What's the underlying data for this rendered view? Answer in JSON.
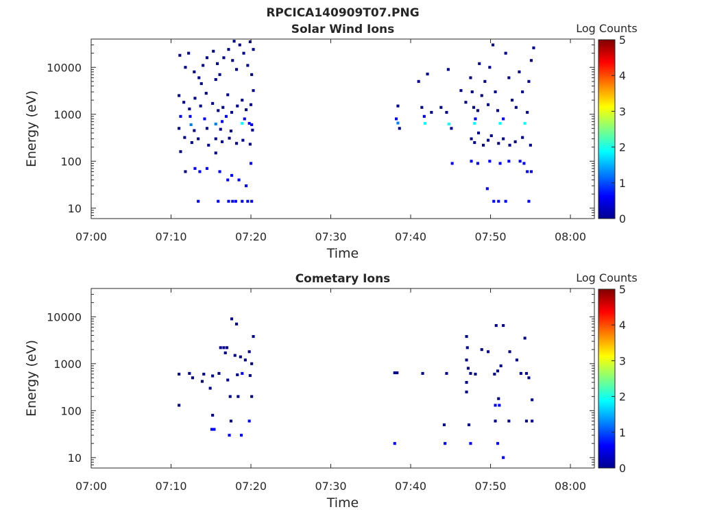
{
  "figure": {
    "title": "RPCICA140909T07.PNG"
  },
  "colors": {
    "cell": "#00008f",
    "cell_mid": "#0f40ff",
    "cell_bright": "#2fb6ff",
    "axis": "#262626",
    "colormap": [
      "#00008f",
      "#0000ff",
      "#0080ff",
      "#00ffff",
      "#80ff80",
      "#ffff00",
      "#ff8000",
      "#ff0000",
      "#800000"
    ]
  },
  "chart_data": [
    {
      "type": "heatmap",
      "title": "Solar Wind Ions",
      "xlabel": "Time",
      "ylabel": "Energy (eV)",
      "x_unit": "minutes after 07:00",
      "xlim": [
        0,
        63
      ],
      "x_ticks": [
        0,
        10,
        20,
        30,
        40,
        50,
        60
      ],
      "x_tick_labels": [
        "07:00",
        "07:10",
        "07:20",
        "07:30",
        "07:40",
        "07:50",
        "08:00"
      ],
      "yscale": "log",
      "ylim": [
        6,
        40000
      ],
      "y_ticks": [
        10,
        100,
        1000,
        10000
      ],
      "y_tick_labels": [
        "10",
        "100",
        "1000",
        "10000"
      ],
      "colorbar": {
        "label": "Log Counts",
        "range": [
          0,
          5
        ],
        "ticks": [
          0,
          1,
          2,
          3,
          4,
          5
        ],
        "tick_labels": [
          "0",
          "1",
          "2",
          "3",
          "4",
          "5"
        ]
      },
      "grid": false,
      "cells": [
        [
          11.1,
          18000,
          0.3
        ],
        [
          12.2,
          20000,
          0.3
        ],
        [
          11.8,
          10000,
          0.3
        ],
        [
          12.9,
          8000,
          0.3
        ],
        [
          13.5,
          6000,
          0.3
        ],
        [
          14.0,
          11000,
          0.3
        ],
        [
          14.5,
          16000,
          0.3
        ],
        [
          15.3,
          22000,
          0.3
        ],
        [
          15.8,
          12000,
          0.3
        ],
        [
          16.1,
          7000,
          0.3
        ],
        [
          16.6,
          16000,
          0.3
        ],
        [
          17.2,
          24000,
          0.3
        ],
        [
          17.7,
          14000,
          0.3
        ],
        [
          18.2,
          9000,
          0.3
        ],
        [
          18.6,
          30000,
          0.3
        ],
        [
          19.1,
          20000,
          0.3
        ],
        [
          19.6,
          11000,
          0.3
        ],
        [
          20.1,
          7000,
          0.3
        ],
        [
          20.3,
          24000,
          0.3
        ],
        [
          19.9,
          35000,
          0.3
        ],
        [
          17.9,
          36000,
          0.3
        ],
        [
          15.6,
          5500,
          0.3
        ],
        [
          13.8,
          4500,
          0.3
        ],
        [
          11.0,
          2500,
          0.3
        ],
        [
          11.6,
          1800,
          0.3
        ],
        [
          12.3,
          1300,
          0.3
        ],
        [
          13.0,
          2200,
          0.3
        ],
        [
          13.7,
          1500,
          0.3
        ],
        [
          14.4,
          2800,
          0.3
        ],
        [
          15.2,
          1700,
          0.3
        ],
        [
          15.9,
          1200,
          0.3
        ],
        [
          16.5,
          1400,
          0.3
        ],
        [
          17.1,
          2600,
          0.3
        ],
        [
          17.6,
          1100,
          0.3
        ],
        [
          18.3,
          1500,
          0.3
        ],
        [
          18.9,
          2000,
          0.3
        ],
        [
          19.4,
          1250,
          0.3
        ],
        [
          20.0,
          1600,
          0.3
        ],
        [
          20.3,
          3200,
          0.3
        ],
        [
          11.2,
          900,
          0.4
        ],
        [
          12.4,
          900,
          0.4
        ],
        [
          12.5,
          600,
          1.4
        ],
        [
          14.2,
          800,
          0.4
        ],
        [
          15.6,
          620,
          1.5
        ],
        [
          16.4,
          700,
          0.4
        ],
        [
          16.9,
          900,
          0.4
        ],
        [
          18.9,
          640,
          2.0
        ],
        [
          19.2,
          800,
          0.6
        ],
        [
          19.8,
          640,
          0.6
        ],
        [
          20.1,
          600,
          0.4
        ],
        [
          11.0,
          500,
          0.3
        ],
        [
          12.9,
          450,
          0.3
        ],
        [
          14.5,
          500,
          0.3
        ],
        [
          16.2,
          480,
          0.3
        ],
        [
          17.5,
          440,
          0.3
        ],
        [
          20.2,
          460,
          0.3
        ],
        [
          11.7,
          320,
          0.3
        ],
        [
          12.6,
          250,
          0.3
        ],
        [
          13.4,
          300,
          0.3
        ],
        [
          14.7,
          220,
          0.3
        ],
        [
          15.6,
          300,
          0.3
        ],
        [
          16.4,
          260,
          0.3
        ],
        [
          17.3,
          310,
          0.3
        ],
        [
          18.2,
          240,
          0.3
        ],
        [
          19.0,
          280,
          0.3
        ],
        [
          19.9,
          230,
          0.3
        ],
        [
          11.2,
          160,
          0.3
        ],
        [
          11.8,
          60,
          0.3
        ],
        [
          13.0,
          70,
          0.4
        ],
        [
          13.6,
          60,
          0.4
        ],
        [
          14.5,
          70,
          0.4
        ],
        [
          15.6,
          150,
          0.3
        ],
        [
          16.1,
          60,
          0.4
        ],
        [
          17.1,
          40,
          0.4
        ],
        [
          17.6,
          50,
          0.4
        ],
        [
          18.5,
          40,
          0.4
        ],
        [
          19.4,
          30,
          0.4
        ],
        [
          20.0,
          90,
          0.4
        ],
        [
          13.4,
          14,
          0.4
        ],
        [
          15.9,
          14,
          0.4
        ],
        [
          17.2,
          14,
          0.5
        ],
        [
          17.7,
          14,
          0.5
        ],
        [
          18.1,
          14,
          0.5
        ],
        [
          18.9,
          14,
          0.4
        ],
        [
          19.6,
          14,
          0.4
        ],
        [
          20.1,
          14,
          0.4
        ],
        [
          38.4,
          1500,
          0.3
        ],
        [
          38.2,
          800,
          0.6
        ],
        [
          38.4,
          650,
          1.4
        ],
        [
          38.6,
          500,
          0.3
        ],
        [
          41.0,
          5000,
          0.3
        ],
        [
          41.4,
          1400,
          0.3
        ],
        [
          41.7,
          900,
          0.4
        ],
        [
          41.8,
          640,
          1.8
        ],
        [
          42.1,
          7200,
          0.3
        ],
        [
          42.6,
          1100,
          0.3
        ],
        [
          43.8,
          1400,
          0.3
        ],
        [
          44.5,
          1100,
          0.3
        ],
        [
          44.8,
          620,
          1.6
        ],
        [
          45.1,
          500,
          0.3
        ],
        [
          44.7,
          9000,
          0.3
        ],
        [
          45.2,
          90,
          0.4
        ],
        [
          46.3,
          3200,
          0.3
        ],
        [
          46.9,
          1800,
          0.3
        ],
        [
          47.5,
          6000,
          0.3
        ],
        [
          47.7,
          3000,
          0.3
        ],
        [
          47.9,
          1400,
          0.3
        ],
        [
          48.1,
          800,
          0.4
        ],
        [
          48.0,
          640,
          1.9
        ],
        [
          48.4,
          1200,
          0.3
        ],
        [
          48.6,
          12000,
          0.3
        ],
        [
          48.9,
          2500,
          0.3
        ],
        [
          49.3,
          5000,
          0.3
        ],
        [
          49.7,
          1600,
          0.3
        ],
        [
          49.9,
          10000,
          0.3
        ],
        [
          50.3,
          30000,
          0.3
        ],
        [
          50.6,
          3000,
          0.3
        ],
        [
          50.9,
          1200,
          0.3
        ],
        [
          51.2,
          640,
          1.6
        ],
        [
          51.6,
          800,
          0.4
        ],
        [
          51.9,
          20000,
          0.3
        ],
        [
          52.3,
          6000,
          0.3
        ],
        [
          52.7,
          2000,
          0.3
        ],
        [
          53.2,
          1400,
          0.3
        ],
        [
          53.6,
          8000,
          0.3
        ],
        [
          54.0,
          3000,
          0.3
        ],
        [
          54.3,
          640,
          1.7
        ],
        [
          54.6,
          1100,
          0.3
        ],
        [
          54.8,
          5000,
          0.3
        ],
        [
          55.1,
          14000,
          0.3
        ],
        [
          55.4,
          26000,
          0.3
        ],
        [
          47.6,
          300,
          0.3
        ],
        [
          48.0,
          250,
          0.3
        ],
        [
          48.5,
          400,
          0.3
        ],
        [
          49.1,
          220,
          0.3
        ],
        [
          49.7,
          280,
          0.3
        ],
        [
          50.1,
          350,
          0.3
        ],
        [
          51.0,
          240,
          0.3
        ],
        [
          51.6,
          300,
          0.3
        ],
        [
          52.4,
          220,
          0.3
        ],
        [
          53.1,
          260,
          0.3
        ],
        [
          54.0,
          320,
          0.3
        ],
        [
          55.0,
          220,
          0.3
        ],
        [
          47.6,
          100,
          0.4
        ],
        [
          48.4,
          90,
          0.4
        ],
        [
          49.9,
          100,
          0.4
        ],
        [
          51.2,
          90,
          0.4
        ],
        [
          52.3,
          100,
          0.4
        ],
        [
          53.7,
          100,
          0.4
        ],
        [
          54.2,
          90,
          0.4
        ],
        [
          54.6,
          60,
          0.4
        ],
        [
          55.1,
          60,
          0.4
        ],
        [
          49.6,
          26,
          0.4
        ],
        [
          50.4,
          14,
          0.4
        ],
        [
          51.0,
          14,
          0.4
        ],
        [
          51.9,
          14,
          0.4
        ],
        [
          54.8,
          14,
          0.4
        ]
      ]
    },
    {
      "type": "heatmap",
      "title": "Cometary Ions",
      "xlabel": "Time",
      "ylabel": "Energy (eV)",
      "x_unit": "minutes after 07:00",
      "xlim": [
        0,
        63
      ],
      "x_ticks": [
        0,
        10,
        20,
        30,
        40,
        50,
        60
      ],
      "x_tick_labels": [
        "07:00",
        "07:10",
        "07:20",
        "07:30",
        "07:40",
        "07:50",
        "08:00"
      ],
      "yscale": "log",
      "ylim": [
        6,
        40000
      ],
      "y_ticks": [
        10,
        100,
        1000,
        10000
      ],
      "y_tick_labels": [
        "10",
        "100",
        "1000",
        "10000"
      ],
      "colorbar": {
        "label": "Log Counts",
        "range": [
          0,
          5
        ],
        "ticks": [
          0,
          1,
          2,
          3,
          4,
          5
        ],
        "tick_labels": [
          "0",
          "1",
          "2",
          "3",
          "4",
          "5"
        ]
      },
      "grid": false,
      "cells": [
        [
          17.6,
          9000,
          0.3
        ],
        [
          18.2,
          7000,
          0.3
        ],
        [
          20.3,
          3800,
          0.3
        ],
        [
          19.8,
          1800,
          0.3
        ],
        [
          18.7,
          1400,
          0.3
        ],
        [
          16.2,
          2200,
          0.3
        ],
        [
          16.6,
          2200,
          0.3
        ],
        [
          17.0,
          2200,
          0.3
        ],
        [
          16.8,
          1700,
          0.3
        ],
        [
          19.3,
          1200,
          0.3
        ],
        [
          20.1,
          1000,
          0.3
        ],
        [
          18.0,
          1500,
          0.3
        ],
        [
          11.0,
          600,
          0.3
        ],
        [
          12.3,
          620,
          0.3
        ],
        [
          12.7,
          500,
          0.3
        ],
        [
          13.9,
          420,
          0.3
        ],
        [
          14.1,
          600,
          0.3
        ],
        [
          15.2,
          550,
          0.3
        ],
        [
          16.0,
          620,
          0.3
        ],
        [
          17.1,
          450,
          0.3
        ],
        [
          18.3,
          580,
          0.3
        ],
        [
          18.9,
          620,
          0.4
        ],
        [
          19.9,
          560,
          0.3
        ],
        [
          11.0,
          130,
          0.3
        ],
        [
          14.9,
          300,
          0.3
        ],
        [
          17.4,
          200,
          0.3
        ],
        [
          18.4,
          200,
          0.3
        ],
        [
          20.1,
          200,
          0.3
        ],
        [
          15.2,
          80,
          0.3
        ],
        [
          15.1,
          40,
          0.5
        ],
        [
          15.4,
          40,
          0.5
        ],
        [
          17.5,
          60,
          0.3
        ],
        [
          17.3,
          30,
          0.4
        ],
        [
          18.8,
          30,
          0.4
        ],
        [
          19.8,
          60,
          0.5
        ],
        [
          38.0,
          640,
          0.3
        ],
        [
          38.3,
          640,
          0.3
        ],
        [
          41.5,
          620,
          0.3
        ],
        [
          44.5,
          620,
          0.3
        ],
        [
          38.0,
          20,
          0.4
        ],
        [
          44.2,
          50,
          0.3
        ],
        [
          44.3,
          20,
          0.4
        ],
        [
          47.0,
          3800,
          0.3
        ],
        [
          47.1,
          2200,
          0.3
        ],
        [
          47.0,
          1200,
          0.3
        ],
        [
          47.2,
          800,
          0.3
        ],
        [
          47.5,
          620,
          0.3
        ],
        [
          48.1,
          600,
          0.3
        ],
        [
          47.0,
          400,
          0.3
        ],
        [
          47.0,
          250,
          0.3
        ],
        [
          47.3,
          50,
          0.3
        ],
        [
          47.5,
          20,
          0.4
        ],
        [
          48.9,
          2000,
          0.3
        ],
        [
          49.7,
          1800,
          0.3
        ],
        [
          50.7,
          6500,
          0.3
        ],
        [
          51.6,
          6500,
          0.3
        ],
        [
          50.5,
          600,
          0.3
        ],
        [
          50.9,
          700,
          0.3
        ],
        [
          51.3,
          900,
          0.3
        ],
        [
          51.0,
          180,
          0.3
        ],
        [
          50.6,
          130,
          0.4
        ],
        [
          51.1,
          130,
          0.4
        ],
        [
          50.6,
          60,
          0.3
        ],
        [
          50.9,
          20,
          0.4
        ],
        [
          51.6,
          10,
          0.4
        ],
        [
          52.3,
          60,
          0.3
        ],
        [
          52.4,
          1800,
          0.3
        ],
        [
          53.3,
          1200,
          0.3
        ],
        [
          53.8,
          620,
          0.3
        ],
        [
          54.3,
          3500,
          0.3
        ],
        [
          54.5,
          620,
          0.3
        ],
        [
          54.8,
          500,
          0.3
        ],
        [
          55.2,
          170,
          0.3
        ],
        [
          54.5,
          60,
          0.3
        ],
        [
          55.2,
          60,
          0.3
        ]
      ]
    }
  ]
}
